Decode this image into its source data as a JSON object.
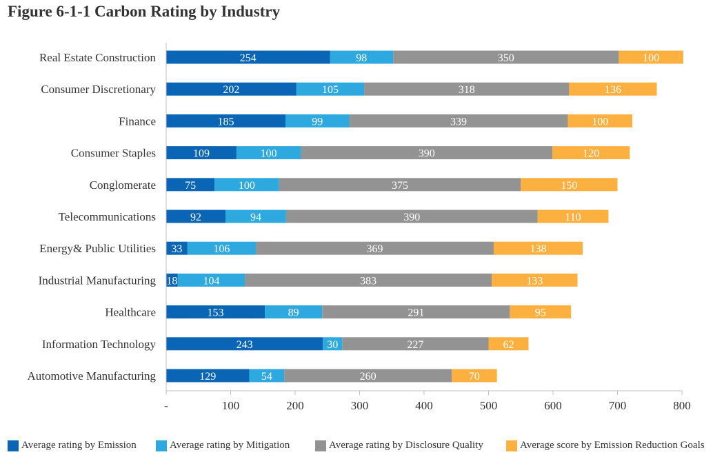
{
  "title": "Figure 6-1-1 Carbon Rating by Industry",
  "colors": {
    "emission": "#0A66B4",
    "mitigation": "#2EA9DF",
    "disclosure": "#939393",
    "goals": "#FBB03F",
    "axis": "#bfbfbf",
    "text": "#333333"
  },
  "chart_data": {
    "type": "bar",
    "orientation": "horizontal",
    "stacked": true,
    "title": "Figure 6-1-1 Carbon Rating by Industry",
    "categories": [
      "Real Estate Construction",
      "Consumer Discretionary",
      "Finance",
      "Consumer Staples",
      "Conglomerate",
      "Telecommunications",
      "Energy& Public Utilities",
      "Industrial Manufacturing",
      "Healthcare",
      "Information Technology",
      "Automotive Manufacturing"
    ],
    "series": [
      {
        "name": "Average rating by Emission",
        "color": "#0A66B4",
        "label_color": "#ffffff",
        "values": [
          254,
          202,
          185,
          109,
          75,
          92,
          33,
          18,
          153,
          243,
          129
        ]
      },
      {
        "name": "Average rating by Mitigation",
        "color": "#2EA9DF",
        "label_color": "#ffffff",
        "values": [
          98,
          105,
          99,
          100,
          100,
          94,
          106,
          104,
          89,
          30,
          54
        ]
      },
      {
        "name": "Average rating by Disclosure Quality",
        "color": "#939393",
        "label_color": "#ffffff",
        "values": [
          350,
          318,
          339,
          390,
          375,
          390,
          369,
          383,
          291,
          227,
          260
        ]
      },
      {
        "name": "Average score by Emission Reduction Goals",
        "color": "#FBB03F",
        "label_color": "#ffffff",
        "values": [
          100,
          136,
          100,
          120,
          150,
          110,
          138,
          133,
          95,
          62,
          70
        ]
      }
    ],
    "xlim": [
      0,
      800
    ],
    "xticks": [
      0,
      100,
      200,
      300,
      400,
      500,
      600,
      700,
      800
    ],
    "xtick_labels": [
      "-",
      "100",
      "200",
      "300",
      "400",
      "500",
      "600",
      "700",
      "800"
    ],
    "grid": false,
    "legend": "bottom"
  }
}
